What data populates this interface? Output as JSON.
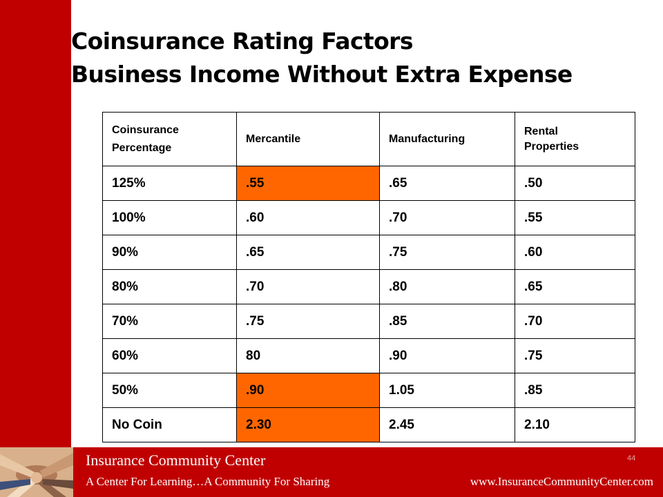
{
  "slide": {
    "title_line1": "Coinsurance Rating Factors",
    "title_line2": "Business Income Without Extra Expense",
    "page_number": "44"
  },
  "table": {
    "headers": [
      [
        "Coinsurance",
        "Percentage"
      ],
      [
        "Mercantile"
      ],
      [
        "Manufacturing"
      ],
      [
        "Rental",
        "Properties"
      ]
    ],
    "rows": [
      [
        ".55",
        ".65",
        ".50"
      ],
      [
        ".60",
        ".70",
        ".55"
      ],
      [
        ".65",
        ".75",
        ".60"
      ],
      [
        ".70",
        ".80",
        ".65"
      ],
      [
        ".75",
        ".85",
        ".70"
      ],
      [
        "80",
        ".90",
        ".75"
      ],
      [
        ".90",
        "1.05",
        ".85"
      ],
      [
        "2.30",
        "2.45",
        "2.10"
      ]
    ],
    "row_labels": [
      "125%",
      "100%",
      "90%",
      "80%",
      "70%",
      "60%",
      "50%",
      "No Coin"
    ],
    "highlight_color": "#ff6600"
  },
  "footer": {
    "org_name": "Insurance Community Center",
    "tagline": "A Center For Learning…A Community For Sharing",
    "url": "www.InsuranceCommunityCenter.com"
  },
  "colors": {
    "brand_red": "#c00000",
    "highlight_orange": "#ff6600"
  },
  "icons": {
    "footer_image": "teamwork-hands-photo"
  }
}
